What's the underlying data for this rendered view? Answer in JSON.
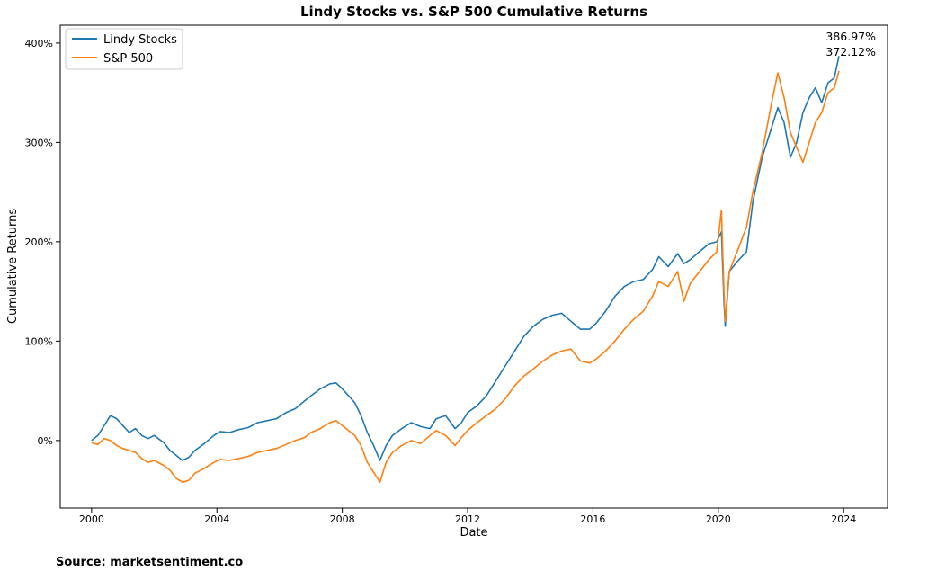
{
  "source_text": "Source: marketsentiment.co",
  "chart_data": {
    "type": "line",
    "title": "Lindy Stocks vs. S&P 500 Cumulative Returns",
    "xlabel": "Date",
    "ylabel": "Cumulative Returns",
    "xlim": [
      1999.0,
      2025.4
    ],
    "ylim": [
      -68,
      418
    ],
    "x_ticks": [
      2000,
      2004,
      2008,
      2012,
      2016,
      2020,
      2024
    ],
    "x_tick_labels": [
      "2000",
      "2004",
      "2008",
      "2012",
      "2016",
      "2020",
      "2024"
    ],
    "y_ticks": [
      0,
      100,
      200,
      300,
      400
    ],
    "y_tick_labels": [
      "0%",
      "100%",
      "200%",
      "300%",
      "400%"
    ],
    "grid": false,
    "legend_position": "top-left",
    "end_annotations": [
      "386.97%",
      "372.12%"
    ],
    "series": [
      {
        "name": "Lindy Stocks",
        "color": "#1f77b4",
        "x": [
          2000.0,
          2000.2,
          2000.4,
          2000.6,
          2000.8,
          2001.0,
          2001.2,
          2001.4,
          2001.6,
          2001.8,
          2002.0,
          2002.3,
          2002.5,
          2002.7,
          2002.9,
          2003.1,
          2003.3,
          2003.6,
          2003.9,
          2004.1,
          2004.4,
          2004.7,
          2005.0,
          2005.3,
          2005.6,
          2005.9,
          2006.2,
          2006.5,
          2006.8,
          2007.0,
          2007.3,
          2007.6,
          2007.8,
          2008.0,
          2008.2,
          2008.4,
          2008.6,
          2008.8,
          2009.0,
          2009.2,
          2009.4,
          2009.6,
          2009.9,
          2010.2,
          2010.5,
          2010.8,
          2011.0,
          2011.3,
          2011.6,
          2011.8,
          2012.0,
          2012.3,
          2012.6,
          2012.9,
          2013.2,
          2013.5,
          2013.8,
          2014.1,
          2014.4,
          2014.7,
          2015.0,
          2015.3,
          2015.6,
          2015.9,
          2016.1,
          2016.4,
          2016.7,
          2017.0,
          2017.3,
          2017.6,
          2017.9,
          2018.1,
          2018.4,
          2018.7,
          2018.9,
          2019.1,
          2019.4,
          2019.7,
          2019.95,
          2020.1,
          2020.18,
          2020.22,
          2020.35,
          2020.6,
          2020.9,
          2021.1,
          2021.4,
          2021.7,
          2021.9,
          2022.1,
          2022.3,
          2022.5,
          2022.7,
          2022.9,
          2023.1,
          2023.3,
          2023.5,
          2023.7,
          2023.85
        ],
        "y": [
          0,
          5,
          15,
          25,
          22,
          15,
          8,
          12,
          5,
          2,
          5,
          -2,
          -10,
          -15,
          -20,
          -17,
          -10,
          -3,
          5,
          9,
          8,
          11,
          13,
          18,
          20,
          22,
          28,
          32,
          40,
          45,
          52,
          57,
          58,
          52,
          45,
          38,
          25,
          8,
          -5,
          -20,
          -5,
          5,
          12,
          18,
          14,
          12,
          22,
          25,
          12,
          18,
          28,
          35,
          45,
          60,
          75,
          90,
          105,
          115,
          122,
          126,
          128,
          120,
          112,
          112,
          118,
          130,
          145,
          155,
          160,
          162,
          172,
          185,
          175,
          188,
          178,
          182,
          190,
          198,
          200,
          210,
          140,
          115,
          170,
          180,
          190,
          240,
          285,
          315,
          335,
          320,
          285,
          300,
          330,
          345,
          355,
          340,
          360,
          365,
          387
        ]
      },
      {
        "name": "S&P 500",
        "color": "#ff7f0e",
        "x": [
          2000.0,
          2000.2,
          2000.4,
          2000.6,
          2000.8,
          2001.0,
          2001.2,
          2001.4,
          2001.6,
          2001.8,
          2002.0,
          2002.3,
          2002.5,
          2002.7,
          2002.9,
          2003.1,
          2003.3,
          2003.6,
          2003.9,
          2004.1,
          2004.4,
          2004.7,
          2005.0,
          2005.3,
          2005.6,
          2005.9,
          2006.2,
          2006.5,
          2006.8,
          2007.0,
          2007.3,
          2007.6,
          2007.8,
          2008.0,
          2008.2,
          2008.4,
          2008.6,
          2008.8,
          2009.0,
          2009.2,
          2009.4,
          2009.6,
          2009.9,
          2010.2,
          2010.5,
          2010.8,
          2011.0,
          2011.3,
          2011.6,
          2011.8,
          2012.0,
          2012.3,
          2012.6,
          2012.9,
          2013.2,
          2013.5,
          2013.8,
          2014.1,
          2014.4,
          2014.7,
          2015.0,
          2015.3,
          2015.6,
          2015.9,
          2016.1,
          2016.4,
          2016.7,
          2017.0,
          2017.3,
          2017.6,
          2017.9,
          2018.1,
          2018.4,
          2018.7,
          2018.9,
          2019.1,
          2019.4,
          2019.7,
          2019.95,
          2020.1,
          2020.18,
          2020.22,
          2020.35,
          2020.6,
          2020.9,
          2021.1,
          2021.4,
          2021.7,
          2021.9,
          2022.1,
          2022.3,
          2022.5,
          2022.7,
          2022.9,
          2023.1,
          2023.3,
          2023.5,
          2023.7,
          2023.85
        ],
        "y": [
          -2,
          -4,
          2,
          0,
          -5,
          -8,
          -10,
          -12,
          -18,
          -22,
          -20,
          -25,
          -30,
          -38,
          -42,
          -40,
          -33,
          -28,
          -22,
          -19,
          -20,
          -18,
          -16,
          -12,
          -10,
          -8,
          -4,
          0,
          3,
          8,
          12,
          18,
          20,
          15,
          10,
          5,
          -5,
          -22,
          -32,
          -42,
          -22,
          -12,
          -5,
          0,
          -3,
          5,
          10,
          5,
          -5,
          3,
          10,
          18,
          25,
          32,
          42,
          55,
          65,
          72,
          80,
          86,
          90,
          92,
          80,
          78,
          82,
          90,
          100,
          112,
          122,
          130,
          145,
          160,
          155,
          170,
          140,
          158,
          170,
          182,
          190,
          232,
          150,
          120,
          170,
          190,
          215,
          250,
          290,
          340,
          370,
          345,
          310,
          295,
          280,
          300,
          320,
          330,
          350,
          355,
          372
        ]
      }
    ]
  }
}
